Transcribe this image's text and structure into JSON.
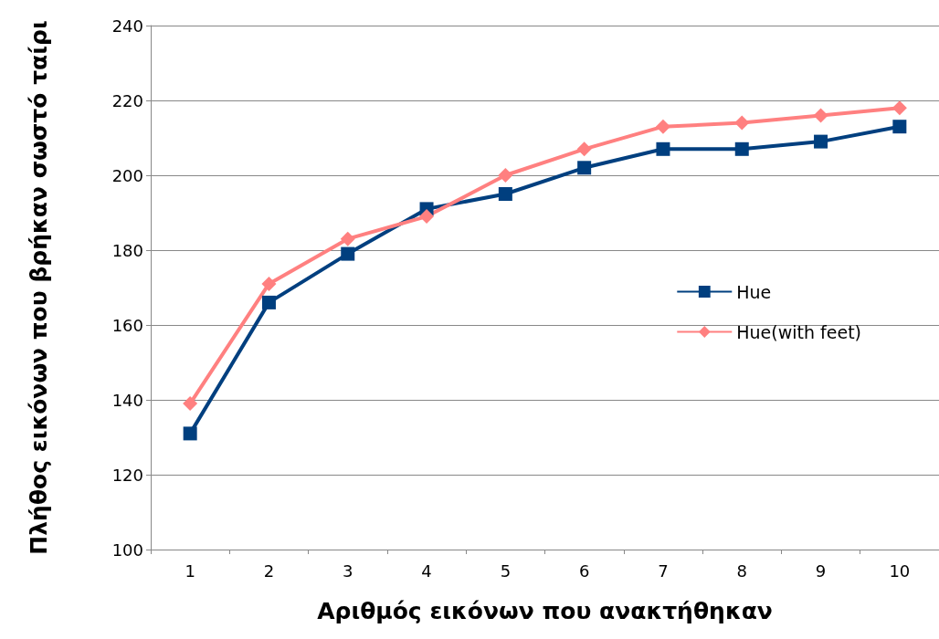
{
  "chart_data": {
    "type": "line",
    "xlabel": "Αριθμός εικόνων που ανακτήθηκαν",
    "ylabel": "Πλήθος εικόνων που βρήκαν σωστό ταίρι",
    "categories": [
      "1",
      "2",
      "3",
      "4",
      "5",
      "6",
      "7",
      "8",
      "9",
      "10"
    ],
    "series": [
      {
        "name": "Hue",
        "color": "#003f7f",
        "marker": "square",
        "values": [
          131,
          166,
          179,
          191,
          195,
          202,
          207,
          207,
          209,
          213
        ]
      },
      {
        "name": "Hue(with feet)",
        "color": "#ff8080",
        "marker": "diamond",
        "values": [
          139,
          171,
          183,
          189,
          200,
          207,
          213,
          214,
          216,
          218
        ]
      }
    ],
    "ylim": [
      100,
      240
    ],
    "yticks": [
      100,
      120,
      140,
      160,
      180,
      200,
      220,
      240
    ],
    "grid": "y",
    "legend": "right"
  }
}
